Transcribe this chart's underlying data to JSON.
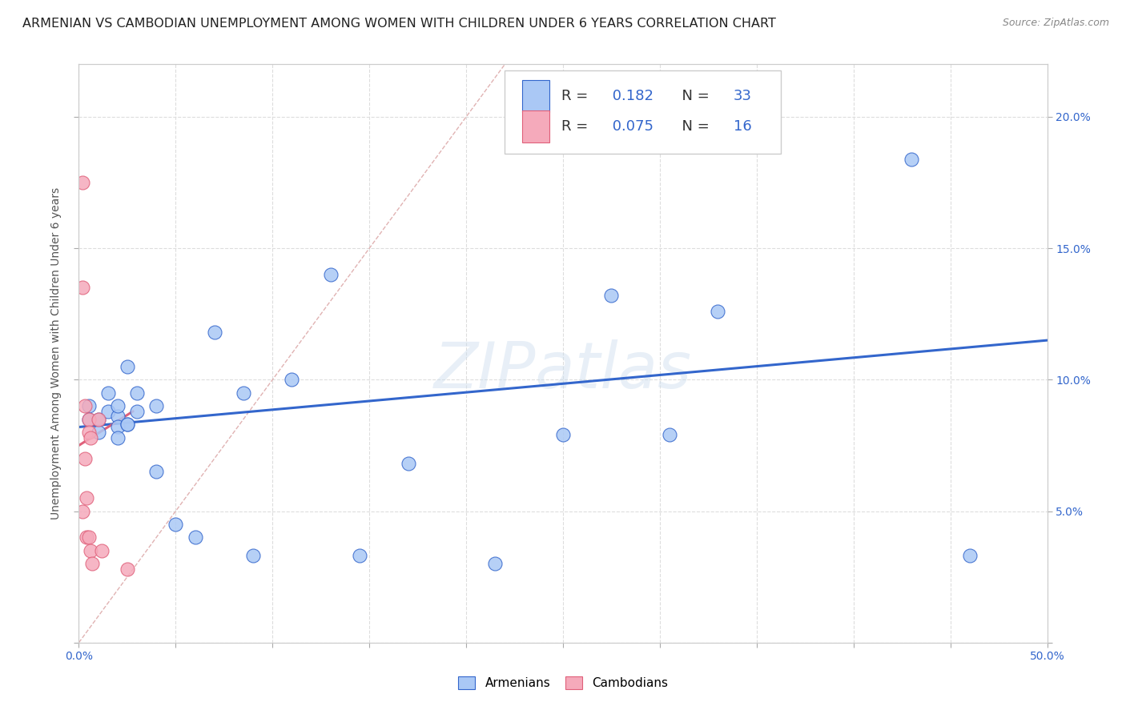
{
  "title": "ARMENIAN VS CAMBODIAN UNEMPLOYMENT AMONG WOMEN WITH CHILDREN UNDER 6 YEARS CORRELATION CHART",
  "source": "Source: ZipAtlas.com",
  "ylabel": "Unemployment Among Women with Children Under 6 years",
  "xlim": [
    0.0,
    0.5
  ],
  "ylim": [
    0.0,
    0.22
  ],
  "x_ticks": [
    0.0,
    0.05,
    0.1,
    0.15,
    0.2,
    0.25,
    0.3,
    0.35,
    0.4,
    0.45,
    0.5
  ],
  "y_ticks": [
    0.0,
    0.05,
    0.1,
    0.15,
    0.2
  ],
  "armenian_R": 0.182,
  "armenian_N": 33,
  "cambodian_R": 0.075,
  "cambodian_N": 16,
  "armenian_color": "#aac8f5",
  "cambodian_color": "#f5aabb",
  "armenian_line_color": "#3366cc",
  "cambodian_line_color": "#e0607a",
  "diagonal_color": "#ddaaaa",
  "watermark": "ZIPatlas",
  "armenian_points_x": [
    0.005,
    0.005,
    0.01,
    0.01,
    0.015,
    0.015,
    0.02,
    0.02,
    0.02,
    0.02,
    0.025,
    0.025,
    0.025,
    0.03,
    0.03,
    0.04,
    0.04,
    0.05,
    0.06,
    0.07,
    0.085,
    0.09,
    0.11,
    0.13,
    0.145,
    0.17,
    0.215,
    0.25,
    0.275,
    0.305,
    0.33,
    0.43,
    0.46
  ],
  "armenian_points_y": [
    0.09,
    0.085,
    0.085,
    0.08,
    0.095,
    0.088,
    0.086,
    0.082,
    0.078,
    0.09,
    0.105,
    0.083,
    0.083,
    0.095,
    0.088,
    0.09,
    0.065,
    0.045,
    0.04,
    0.118,
    0.095,
    0.033,
    0.1,
    0.14,
    0.033,
    0.068,
    0.03,
    0.079,
    0.132,
    0.079,
    0.126,
    0.184,
    0.033
  ],
  "cambodian_points_x": [
    0.002,
    0.002,
    0.002,
    0.003,
    0.003,
    0.004,
    0.004,
    0.005,
    0.005,
    0.005,
    0.006,
    0.006,
    0.007,
    0.01,
    0.012,
    0.025
  ],
  "cambodian_points_y": [
    0.175,
    0.135,
    0.05,
    0.09,
    0.07,
    0.055,
    0.04,
    0.085,
    0.08,
    0.04,
    0.078,
    0.035,
    0.03,
    0.085,
    0.035,
    0.028
  ],
  "armenian_trend_x": [
    0.0,
    0.5
  ],
  "armenian_trend_y": [
    0.082,
    0.115
  ],
  "cambodian_trend_x": [
    0.0,
    0.028
  ],
  "cambodian_trend_y": [
    0.075,
    0.088
  ],
  "background_color": "#ffffff",
  "grid_color": "#dddddd",
  "title_fontsize": 11.5,
  "label_fontsize": 10,
  "tick_fontsize": 10,
  "right_tick_color": "#3366cc"
}
